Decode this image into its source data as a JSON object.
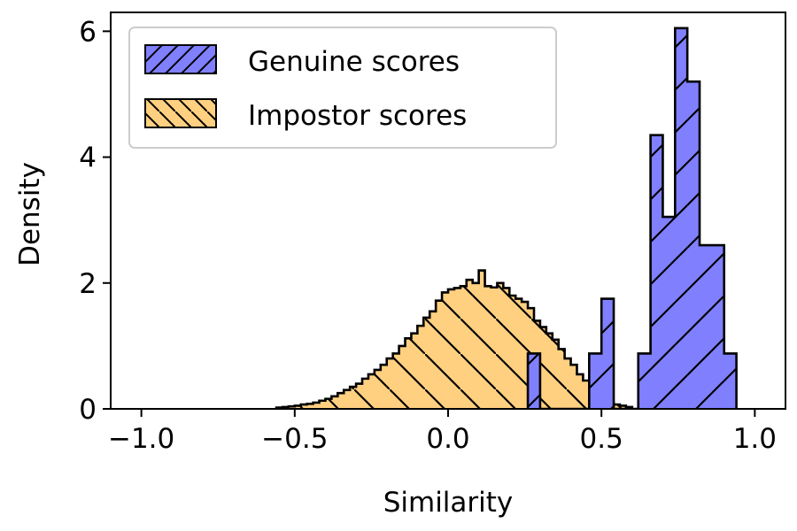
{
  "chart_data": {
    "type": "histogram",
    "title": "",
    "xlabel": "Similarity",
    "ylabel": "Density",
    "xlim": [
      -1.1,
      1.1
    ],
    "ylim": [
      0,
      6.3
    ],
    "xticks": [
      -1.0,
      -0.5,
      0.0,
      0.5,
      1.0
    ],
    "xtick_labels": [
      "−1.0",
      "−0.5",
      "0.0",
      "0.5",
      "1.0"
    ],
    "yticks": [
      0,
      2,
      4,
      6
    ],
    "ytick_labels": [
      "0",
      "2",
      "4",
      "6"
    ],
    "grid": false,
    "legend_position": "top-left",
    "series": [
      {
        "name": "Genuine scores",
        "color": "#8080ff",
        "edge_color": "#000000",
        "hatch": "forward-diagonal",
        "bin_width": 0.04,
        "bin_starts": [
          0.26,
          0.3,
          0.34,
          0.38,
          0.42,
          0.46,
          0.5,
          0.54,
          0.58,
          0.62,
          0.66,
          0.7,
          0.74,
          0.78,
          0.82,
          0.86,
          0.9
        ],
        "values": [
          0.88,
          0.0,
          0.0,
          0.0,
          0.0,
          0.88,
          1.75,
          0.0,
          0.0,
          0.88,
          4.35,
          3.05,
          6.05,
          5.2,
          2.6,
          2.6,
          0.88
        ]
      },
      {
        "name": "Impostor scores",
        "color": "#ffd080",
        "edge_color": "#000000",
        "hatch": "back-diagonal",
        "bin_width": 0.02,
        "bin_starts": [
          -0.56,
          -0.54,
          -0.52,
          -0.5,
          -0.48,
          -0.46,
          -0.44,
          -0.42,
          -0.4,
          -0.38,
          -0.36,
          -0.34,
          -0.32,
          -0.3,
          -0.28,
          -0.26,
          -0.24,
          -0.22,
          -0.2,
          -0.18,
          -0.16,
          -0.14,
          -0.12,
          -0.1,
          -0.08,
          -0.06,
          -0.04,
          -0.02,
          0.0,
          0.02,
          0.04,
          0.06,
          0.08,
          0.1,
          0.12,
          0.14,
          0.16,
          0.18,
          0.2,
          0.22,
          0.24,
          0.26,
          0.28,
          0.3,
          0.32,
          0.34,
          0.36,
          0.38,
          0.4,
          0.42,
          0.44,
          0.46,
          0.48,
          0.5,
          0.52,
          0.54,
          0.56,
          0.58
        ],
        "values": [
          0.02,
          0.03,
          0.04,
          0.05,
          0.07,
          0.08,
          0.1,
          0.13,
          0.16,
          0.2,
          0.25,
          0.3,
          0.35,
          0.4,
          0.48,
          0.55,
          0.62,
          0.7,
          0.8,
          0.88,
          1.0,
          1.12,
          1.2,
          1.32,
          1.45,
          1.55,
          1.72,
          1.85,
          1.9,
          1.92,
          1.95,
          2.05,
          2.0,
          2.2,
          1.95,
          1.93,
          2.0,
          1.92,
          1.8,
          1.75,
          1.7,
          1.6,
          1.4,
          1.3,
          1.2,
          1.1,
          0.95,
          0.8,
          0.7,
          0.55,
          0.45,
          0.35,
          0.22,
          0.15,
          0.1,
          0.07,
          0.05,
          0.03
        ]
      }
    ]
  }
}
